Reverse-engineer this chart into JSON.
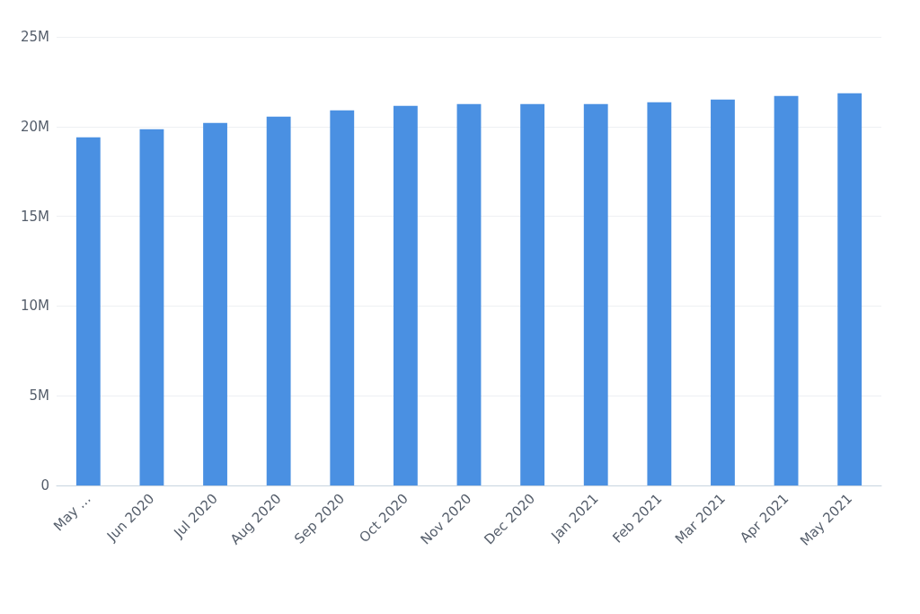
{
  "chart_data": {
    "type": "bar",
    "categories": [
      "May …",
      "Jun 2020",
      "Jul 2020",
      "Aug 2020",
      "Sep 2020",
      "Oct 2020",
      "Nov 2020",
      "Dec 2020",
      "Jan 2021",
      "Feb 2021",
      "Mar 2021",
      "Apr 2021",
      "May 2021"
    ],
    "values": [
      19400000,
      19850000,
      20200000,
      20550000,
      20900000,
      21150000,
      21250000,
      21250000,
      21250000,
      21350000,
      21500000,
      21700000,
      21850000
    ],
    "color": "#4a90e2",
    "ylim": [
      0,
      25000000
    ],
    "yticks": [
      {
        "value": 0,
        "label": "0"
      },
      {
        "value": 5000000,
        "label": "5M"
      },
      {
        "value": 10000000,
        "label": "10M"
      },
      {
        "value": 15000000,
        "label": "15M"
      },
      {
        "value": 20000000,
        "label": "20M"
      },
      {
        "value": 25000000,
        "label": "25M"
      }
    ],
    "grid": "y"
  }
}
